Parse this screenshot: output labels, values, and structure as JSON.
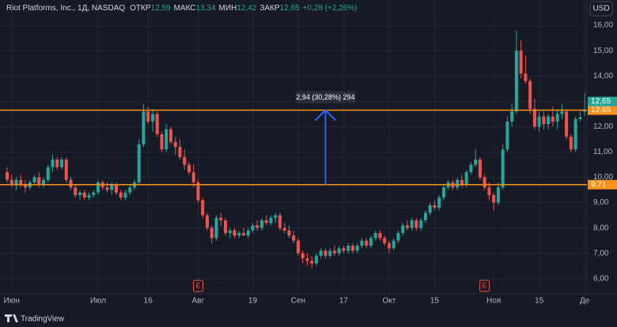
{
  "chart_data": {
    "type": "candlestick",
    "header": {
      "symbol": "Riot Platforms, Inc., 1Д, NASDAQ",
      "items": [
        {
          "label": "ОТКР",
          "value": "12,59"
        },
        {
          "label": "МАКС",
          "value": "13,34"
        },
        {
          "label": "МИН",
          "value": "12,42"
        },
        {
          "label": "ЗАКР",
          "value": "12,65"
        }
      ],
      "change": "+0,28 (+2,26%)"
    },
    "currency_button": "USD",
    "brand": "TradingView",
    "up_color": "#26a69a",
    "down_color": "#ef5350",
    "ohlc": [
      [
        10.2,
        10.4,
        9.8,
        9.9
      ],
      [
        9.9,
        10.1,
        9.6,
        9.7
      ],
      [
        9.7,
        10.0,
        9.5,
        9.9
      ],
      [
        9.9,
        10.1,
        9.6,
        9.7
      ],
      [
        9.7,
        9.9,
        9.4,
        9.6
      ],
      [
        9.6,
        9.9,
        9.5,
        9.8
      ],
      [
        9.8,
        10.1,
        9.7,
        10.0
      ],
      [
        10.0,
        10.2,
        9.6,
        9.7
      ],
      [
        9.7,
        10.0,
        9.6,
        9.9
      ],
      [
        9.9,
        10.5,
        9.8,
        10.4
      ],
      [
        10.4,
        10.9,
        10.2,
        10.7
      ],
      [
        10.7,
        10.8,
        10.3,
        10.4
      ],
      [
        10.4,
        10.8,
        10.3,
        10.7
      ],
      [
        10.7,
        10.8,
        9.8,
        9.9
      ],
      [
        9.9,
        10.0,
        9.5,
        9.6
      ],
      [
        9.6,
        9.7,
        9.2,
        9.3
      ],
      [
        9.3,
        9.5,
        9.1,
        9.4
      ],
      [
        9.4,
        9.5,
        9.1,
        9.2
      ],
      [
        9.2,
        9.4,
        9.1,
        9.3
      ],
      [
        9.3,
        9.5,
        9.2,
        9.4
      ],
      [
        9.4,
        9.9,
        9.3,
        9.8
      ],
      [
        9.8,
        9.9,
        9.5,
        9.6
      ],
      [
        9.6,
        9.8,
        9.4,
        9.5
      ],
      [
        9.5,
        9.8,
        9.3,
        9.7
      ],
      [
        9.7,
        9.8,
        9.3,
        9.4
      ],
      [
        9.4,
        9.5,
        9.1,
        9.2
      ],
      [
        9.2,
        9.5,
        9.1,
        9.4
      ],
      [
        9.4,
        9.7,
        9.3,
        9.6
      ],
      [
        9.6,
        9.9,
        9.5,
        9.8
      ],
      [
        9.8,
        11.5,
        9.7,
        11.3
      ],
      [
        11.3,
        12.9,
        11.2,
        12.6
      ],
      [
        12.6,
        12.8,
        12.1,
        12.2
      ],
      [
        12.2,
        12.7,
        11.8,
        12.5
      ],
      [
        12.5,
        12.6,
        11.6,
        11.7
      ],
      [
        11.7,
        11.8,
        11.0,
        11.1
      ],
      [
        11.1,
        12.1,
        11.0,
        11.9
      ],
      [
        11.9,
        12.0,
        11.3,
        11.4
      ],
      [
        11.4,
        11.6,
        10.9,
        11.2
      ],
      [
        11.2,
        11.5,
        10.7,
        10.8
      ],
      [
        10.8,
        11.1,
        10.3,
        10.5
      ],
      [
        10.5,
        10.6,
        10.1,
        10.2
      ],
      [
        10.2,
        10.5,
        9.6,
        9.8
      ],
      [
        9.8,
        9.9,
        9.0,
        9.1
      ],
      [
        9.1,
        9.2,
        8.4,
        8.5
      ],
      [
        8.5,
        8.6,
        7.9,
        8.0
      ],
      [
        8.0,
        8.1,
        7.4,
        7.6
      ],
      [
        7.6,
        8.5,
        7.5,
        8.4
      ],
      [
        8.4,
        8.6,
        8.1,
        8.3
      ],
      [
        8.3,
        8.4,
        7.7,
        7.8
      ],
      [
        7.8,
        8.0,
        7.6,
        7.9
      ],
      [
        7.9,
        8.0,
        7.6,
        7.7
      ],
      [
        7.7,
        7.9,
        7.6,
        7.8
      ],
      [
        7.8,
        8.0,
        7.7,
        7.7
      ],
      [
        7.7,
        8.0,
        7.6,
        7.9
      ],
      [
        7.9,
        8.2,
        7.8,
        8.1
      ],
      [
        8.1,
        8.3,
        7.9,
        8.0
      ],
      [
        8.0,
        8.4,
        7.9,
        8.3
      ],
      [
        8.3,
        8.5,
        8.1,
        8.2
      ],
      [
        8.2,
        8.5,
        8.1,
        8.4
      ],
      [
        8.4,
        8.6,
        8.2,
        8.5
      ],
      [
        8.5,
        8.6,
        7.9,
        8.0
      ],
      [
        8.0,
        8.2,
        7.8,
        7.9
      ],
      [
        7.9,
        8.1,
        7.6,
        7.7
      ],
      [
        7.7,
        7.9,
        7.4,
        7.5
      ],
      [
        7.5,
        7.6,
        6.9,
        7.0
      ],
      [
        7.0,
        7.1,
        6.6,
        6.8
      ],
      [
        6.8,
        7.0,
        6.5,
        6.7
      ],
      [
        6.7,
        6.9,
        6.4,
        6.6
      ],
      [
        6.6,
        7.0,
        6.5,
        6.9
      ],
      [
        6.9,
        7.2,
        6.8,
        7.1
      ],
      [
        7.1,
        7.2,
        6.8,
        6.9
      ],
      [
        6.9,
        7.2,
        6.8,
        7.1
      ],
      [
        7.1,
        7.3,
        6.9,
        7.0
      ],
      [
        7.0,
        7.3,
        6.9,
        7.2
      ],
      [
        7.2,
        7.3,
        7.0,
        7.1
      ],
      [
        7.1,
        7.4,
        7.0,
        7.3
      ],
      [
        7.3,
        7.4,
        7.0,
        7.1
      ],
      [
        7.1,
        7.4,
        7.0,
        7.3
      ],
      [
        7.3,
        7.6,
        7.2,
        7.5
      ],
      [
        7.5,
        7.6,
        7.2,
        7.3
      ],
      [
        7.3,
        7.7,
        7.2,
        7.6
      ],
      [
        7.6,
        7.9,
        7.5,
        7.8
      ],
      [
        7.8,
        7.9,
        7.5,
        7.6
      ],
      [
        7.6,
        7.7,
        7.3,
        7.4
      ],
      [
        7.4,
        7.5,
        7.0,
        7.2
      ],
      [
        7.2,
        7.6,
        7.1,
        7.5
      ],
      [
        7.5,
        7.9,
        7.4,
        7.8
      ],
      [
        7.8,
        8.2,
        7.7,
        8.1
      ],
      [
        8.1,
        8.3,
        7.9,
        8.0
      ],
      [
        8.0,
        8.4,
        7.9,
        8.3
      ],
      [
        8.3,
        8.4,
        7.9,
        8.0
      ],
      [
        8.0,
        8.4,
        7.9,
        8.3
      ],
      [
        8.3,
        8.7,
        8.2,
        8.6
      ],
      [
        8.6,
        9.0,
        8.5,
        8.9
      ],
      [
        8.9,
        9.1,
        8.7,
        8.8
      ],
      [
        8.8,
        9.3,
        8.7,
        9.2
      ],
      [
        9.2,
        9.7,
        9.1,
        9.6
      ],
      [
        9.6,
        9.9,
        9.5,
        9.8
      ],
      [
        9.8,
        9.9,
        9.5,
        9.6
      ],
      [
        9.6,
        10.0,
        9.5,
        9.9
      ],
      [
        9.9,
        10.1,
        9.6,
        9.7
      ],
      [
        9.7,
        10.3,
        9.6,
        10.2
      ],
      [
        10.2,
        10.6,
        10.1,
        10.5
      ],
      [
        10.5,
        11.1,
        10.4,
        10.7
      ],
      [
        10.7,
        10.8,
        9.9,
        10.0
      ],
      [
        10.0,
        10.1,
        9.5,
        9.6
      ],
      [
        9.6,
        9.8,
        9.1,
        9.3
      ],
      [
        9.3,
        9.4,
        8.7,
        9.0
      ],
      [
        9.0,
        9.8,
        8.9,
        9.6
      ],
      [
        9.6,
        11.3,
        9.5,
        11.1
      ],
      [
        11.1,
        12.4,
        11.0,
        12.2
      ],
      [
        12.2,
        12.9,
        12.0,
        12.6
      ],
      [
        12.6,
        15.8,
        12.5,
        15.0
      ],
      [
        15.0,
        15.4,
        13.9,
        14.1
      ],
      [
        14.1,
        14.8,
        13.7,
        13.8
      ],
      [
        13.8,
        13.9,
        12.5,
        12.7
      ],
      [
        12.7,
        13.1,
        11.9,
        12.0
      ],
      [
        12.0,
        12.6,
        11.8,
        12.4
      ],
      [
        12.4,
        12.6,
        11.9,
        12.1
      ],
      [
        12.1,
        12.5,
        11.9,
        12.4
      ],
      [
        12.4,
        12.8,
        12.0,
        12.2
      ],
      [
        12.2,
        12.7,
        11.9,
        12.5
      ],
      [
        12.5,
        12.9,
        12.3,
        12.6
      ],
      [
        12.6,
        12.7,
        11.5,
        11.6
      ],
      [
        11.6,
        11.7,
        11.0,
        11.1
      ],
      [
        11.1,
        12.4,
        11.0,
        12.3
      ],
      [
        12.3,
        12.6,
        12.2,
        12.37
      ],
      [
        12.59,
        13.34,
        12.42,
        12.65
      ]
    ],
    "xlim": [
      -1.57,
      127.5
    ],
    "xticks": [
      {
        "value": 1,
        "label": "Июн"
      },
      {
        "value": 20,
        "label": "Июл"
      },
      {
        "value": 31,
        "label": "16"
      },
      {
        "value": 42,
        "label": "Авг"
      },
      {
        "value": 54,
        "label": "19"
      },
      {
        "value": 64,
        "label": "Сен"
      },
      {
        "value": 74,
        "label": "17"
      },
      {
        "value": 84,
        "label": "Окт"
      },
      {
        "value": 94,
        "label": "15"
      },
      {
        "value": 107,
        "label": "Ноя"
      },
      {
        "value": 117,
        "label": "15"
      },
      {
        "value": 127,
        "label": "Де"
      }
    ],
    "ylim": [
      5.4,
      17.0
    ],
    "yticks": [
      {
        "value": 16,
        "label": "16,00"
      },
      {
        "value": 15,
        "label": "15,00"
      },
      {
        "value": 14,
        "label": "14,00"
      },
      {
        "value": 13,
        "label": "13,00"
      },
      {
        "value": 12,
        "label": "12,00"
      },
      {
        "value": 11,
        "label": "11,00"
      },
      {
        "value": 10,
        "label": "10,00"
      },
      {
        "value": 9,
        "label": "9,00"
      },
      {
        "value": 8,
        "label": "8,00"
      },
      {
        "value": 7,
        "label": "7,00"
      },
      {
        "value": 6,
        "label": "6,00"
      }
    ],
    "grid": true,
    "hlines": [
      {
        "value": 12.65,
        "label": "12,65",
        "color": "#f7931a"
      },
      {
        "value": 9.71,
        "label": "9,71",
        "color": "#f7931a"
      }
    ],
    "last_price": {
      "value": 12.65,
      "label": "12,65"
    },
    "measure": {
      "index": 70,
      "from": 9.71,
      "to": 12.65,
      "label": "2,94 (30,28%) 294",
      "color": "#2962ff"
    },
    "events": [
      {
        "index": 42,
        "label": "E"
      },
      {
        "index": 105,
        "label": "E"
      }
    ]
  }
}
